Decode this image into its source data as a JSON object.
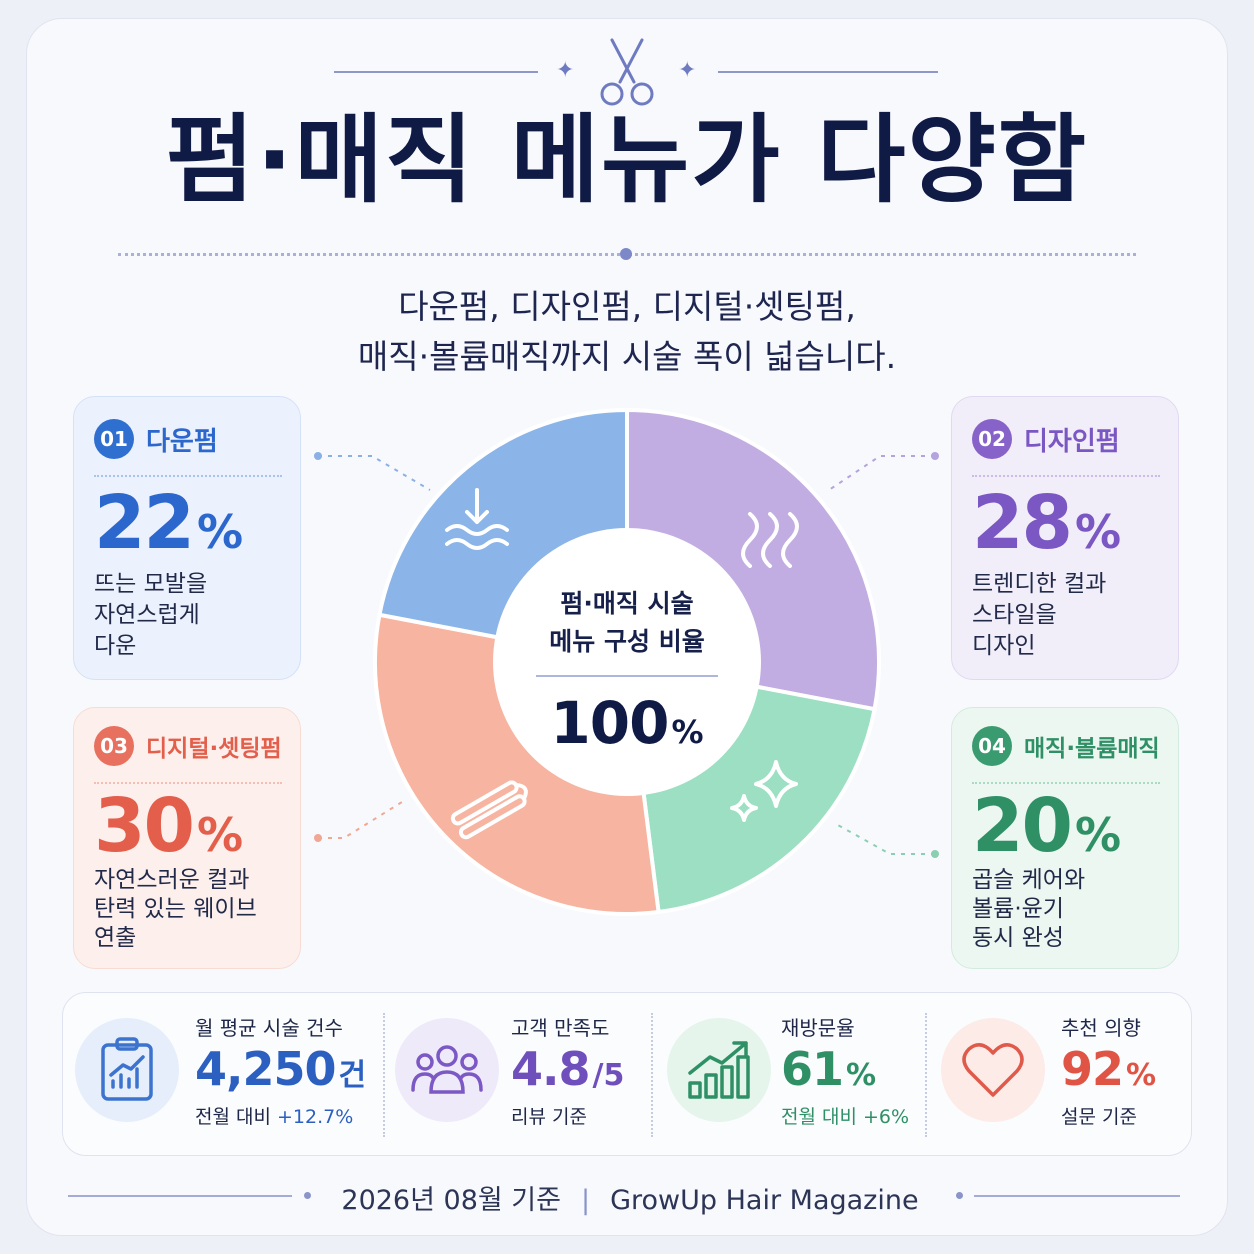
{
  "title": "펌·매직 메뉴가 다양함",
  "subtitle": {
    "line1": "다운펌, 디자인펌, 디지털·셋팅펌,",
    "line2": "매직·볼륨매직까지 시술 폭이 넓습니다."
  },
  "categories": [
    {
      "num": "01",
      "name": "다운펌",
      "value": "22",
      "unit": "%",
      "desc": [
        "뜨는 모발을",
        "자연스럽게",
        "다운"
      ]
    },
    {
      "num": "02",
      "name": "디자인펌",
      "value": "28",
      "unit": "%",
      "desc": [
        "트렌디한 컬과",
        "스타일을",
        "디자인"
      ]
    },
    {
      "num": "03",
      "name": "디지털·셋팅펌",
      "value": "30",
      "unit": "%",
      "desc": [
        "자연스러운 컬과",
        "탄력 있는 웨이브",
        "연출"
      ]
    },
    {
      "num": "04",
      "name": "매직·볼륨매직",
      "value": "20",
      "unit": "%",
      "desc": [
        "곱슬 케어와",
        "볼륨·윤기",
        "동시 완성"
      ]
    }
  ],
  "chart_data": {
    "type": "pie",
    "title": "펌·매직 시술 메뉴 구성 비율",
    "total_label": "100%",
    "categories": [
      "다운펌",
      "디자인펌",
      "디지털·셋팅펌",
      "매직·볼륨매직"
    ],
    "values": [
      22,
      28,
      30,
      20
    ],
    "colors": [
      "#8bb4e8",
      "#c1ade2",
      "#f6b4a1",
      "#9cdfc3"
    ],
    "icons": [
      "down-wave-icon",
      "wave-lines-icon",
      "flat-iron-icon",
      "sparkle-icon"
    ]
  },
  "center": {
    "label1": "펌·매직 시술",
    "label2": "메뉴 구성 비율",
    "value": "100",
    "unit": "%"
  },
  "stats": [
    {
      "label": "월 평균 시술 건수",
      "value": "4,250",
      "unit": "건",
      "note": "전월 대비 +12.7%",
      "icon": "clipboard-chart-icon"
    },
    {
      "label": "고객 만족도",
      "value": "4.8",
      "unit": "/5",
      "note": "리뷰 기준",
      "icon": "people-icon"
    },
    {
      "label": "재방문율",
      "value": "61",
      "unit": "%",
      "note": "전월 대비 +6%",
      "icon": "growth-chart-icon"
    },
    {
      "label": "추천 의향",
      "value": "92",
      "unit": "%",
      "note": "설문 기준",
      "icon": "heart-icon"
    }
  ],
  "footer": {
    "date": "2026년 08월 기준",
    "divider": "|",
    "source": "GrowUp Hair Magazine"
  }
}
